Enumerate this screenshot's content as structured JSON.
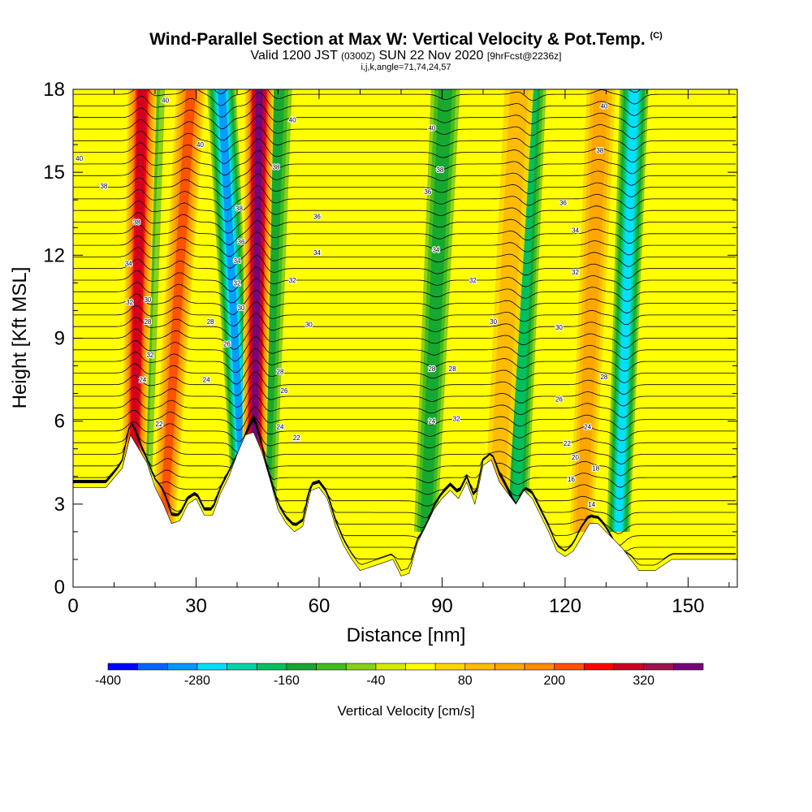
{
  "header": {
    "title": "Wind-Parallel Section at Max W: Vertical Velocity & Pot.Temp.",
    "title_mark": "(C)",
    "valid_prefix": "Valid 1200 JST",
    "valid_utc": "(0300Z)",
    "valid_date": "SUN 22 Nov 2020",
    "forecast": "[9hrFcst@2236z]",
    "grid_info": "i,j,k,angle=71,74,24,57"
  },
  "chart_data": {
    "type": "heatmap",
    "title": "Wind-Parallel Section at Max W: Vertical Velocity & Pot.Temp.",
    "xlabel": "Distance [nm]",
    "ylabel": "Height [Kft MSL]",
    "xlim": [
      0,
      162
    ],
    "ylim": [
      0,
      18
    ],
    "x_ticks": [
      0,
      30,
      60,
      90,
      120,
      150
    ],
    "y_ticks": [
      0,
      3,
      6,
      9,
      12,
      15,
      18
    ],
    "grid": false,
    "colorbar": {
      "label": "Vertical Velocity [cm/s]",
      "levels": [
        -400,
        -360,
        -320,
        -280,
        -240,
        -200,
        -160,
        -120,
        -80,
        -40,
        0,
        40,
        80,
        120,
        160,
        200,
        240,
        280,
        320,
        360,
        400
      ],
      "tick_labels": [
        "-400",
        "-280",
        "-160",
        "-40",
        "80",
        "200",
        "320"
      ],
      "tick_values": [
        -400,
        -280,
        -160,
        -40,
        80,
        200,
        320
      ],
      "colors": [
        "#0000ff",
        "#0066ff",
        "#0099ff",
        "#00e0ff",
        "#00d4a8",
        "#00c060",
        "#14a832",
        "#44bb1c",
        "#88d018",
        "#d4ea00",
        "#ffff00",
        "#ffd700",
        "#ffbb00",
        "#ffa500",
        "#ff8c00",
        "#ff5000",
        "#ff0000",
        "#cc0022",
        "#a0104c",
        "#7a007a"
      ]
    },
    "terrain_kft": [
      [
        0,
        3.6
      ],
      [
        8,
        3.6
      ],
      [
        12,
        4.3
      ],
      [
        14,
        5.5
      ],
      [
        16,
        5.0
      ],
      [
        18,
        4.5
      ],
      [
        20,
        3.6
      ],
      [
        22,
        3.0
      ],
      [
        24,
        2.3
      ],
      [
        26,
        2.4
      ],
      [
        28,
        3.0
      ],
      [
        30,
        3.2
      ],
      [
        32,
        2.6
      ],
      [
        34,
        2.6
      ],
      [
        36,
        3.4
      ],
      [
        38,
        4.0
      ],
      [
        40,
        4.8
      ],
      [
        42,
        5.5
      ],
      [
        44,
        5.6
      ],
      [
        46,
        4.9
      ],
      [
        48,
        3.9
      ],
      [
        50,
        2.8
      ],
      [
        52,
        2.3
      ],
      [
        54,
        2.0
      ],
      [
        56,
        2.2
      ],
      [
        58,
        3.5
      ],
      [
        60,
        3.6
      ],
      [
        62,
        3.2
      ],
      [
        64,
        2.2
      ],
      [
        66,
        1.5
      ],
      [
        68,
        1.0
      ],
      [
        70,
        0.6
      ],
      [
        74,
        0.8
      ],
      [
        78,
        1.0
      ],
      [
        80,
        0.4
      ],
      [
        82,
        0.5
      ],
      [
        84,
        1.6
      ],
      [
        86,
        2.2
      ],
      [
        88,
        2.8
      ],
      [
        90,
        3.2
      ],
      [
        92,
        3.5
      ],
      [
        94,
        3.2
      ],
      [
        96,
        3.8
      ],
      [
        98,
        3.0
      ],
      [
        100,
        4.4
      ],
      [
        102,
        4.6
      ],
      [
        104,
        3.8
      ],
      [
        106,
        3.4
      ],
      [
        108,
        3.0
      ],
      [
        110,
        3.5
      ],
      [
        112,
        3.2
      ],
      [
        114,
        2.6
      ],
      [
        116,
        2.0
      ],
      [
        118,
        1.3
      ],
      [
        120,
        1.1
      ],
      [
        122,
        1.3
      ],
      [
        124,
        1.8
      ],
      [
        126,
        2.3
      ],
      [
        128,
        2.3
      ],
      [
        130,
        2.0
      ],
      [
        132,
        1.7
      ],
      [
        134,
        1.4
      ],
      [
        136,
        1.0
      ],
      [
        138,
        0.6
      ],
      [
        142,
        0.6
      ],
      [
        146,
        1.0
      ],
      [
        150,
        1.0
      ],
      [
        154,
        1.0
      ],
      [
        158,
        1.0
      ],
      [
        162,
        1.0
      ]
    ],
    "updraft_bands": [
      {
        "x_top": 17.0,
        "x_bottom": 14.5,
        "w_cm_s": 300
      },
      {
        "x_top": 29.0,
        "x_bottom": 22.0,
        "w_cm_s": 200
      },
      {
        "x_top": 45.5,
        "x_bottom": 44.0,
        "w_cm_s": 360
      },
      {
        "x_top": 109.0,
        "x_bottom": 103.0,
        "w_cm_s": 80
      },
      {
        "x_top": 129.0,
        "x_bottom": 124.0,
        "w_cm_s": 120
      }
    ],
    "downdraft_bands": [
      {
        "x_top": 19.0,
        "x_bottom": 16.0,
        "w_cm_s": -100
      },
      {
        "x_top": 36.0,
        "x_bottom": 42.0,
        "w_cm_s": -300
      },
      {
        "x_top": 50.0,
        "x_bottom": 46.5,
        "w_cm_s": -120
      },
      {
        "x_top": 91.0,
        "x_bottom": 86.0,
        "w_cm_s": -140
      },
      {
        "x_top": 112.0,
        "x_bottom": 108.0,
        "w_cm_s": -180
      },
      {
        "x_top": 137.0,
        "x_bottom": 133.0,
        "w_cm_s": -260
      }
    ],
    "theta_contour_labels": [
      {
        "text": "40",
        "x": 1.5,
        "y": 15.5
      },
      {
        "text": "38",
        "x": 7.5,
        "y": 14.5
      },
      {
        "text": "38",
        "x": 15.5,
        "y": 13.2
      },
      {
        "text": "34",
        "x": 13.5,
        "y": 11.7
      },
      {
        "text": "32",
        "x": 13.8,
        "y": 10.3
      },
      {
        "text": "30",
        "x": 18.2,
        "y": 10.4
      },
      {
        "text": "28",
        "x": 18.2,
        "y": 9.6
      },
      {
        "text": "32",
        "x": 18.8,
        "y": 8.4
      },
      {
        "text": "24",
        "x": 17.0,
        "y": 7.5
      },
      {
        "text": "22",
        "x": 21.0,
        "y": 5.9
      },
      {
        "text": "40",
        "x": 22.5,
        "y": 17.6
      },
      {
        "text": "40",
        "x": 31.0,
        "y": 16.0
      },
      {
        "text": "28",
        "x": 33.5,
        "y": 9.6
      },
      {
        "text": "24",
        "x": 32.5,
        "y": 7.5
      },
      {
        "text": "26",
        "x": 37.5,
        "y": 8.8
      },
      {
        "text": "38",
        "x": 40.5,
        "y": 13.7
      },
      {
        "text": "36",
        "x": 41.0,
        "y": 12.5
      },
      {
        "text": "34",
        "x": 40.0,
        "y": 11.8
      },
      {
        "text": "32",
        "x": 40.0,
        "y": 11.0
      },
      {
        "text": "30",
        "x": 41.0,
        "y": 10.1
      },
      {
        "text": "38",
        "x": 49.5,
        "y": 15.2
      },
      {
        "text": "40",
        "x": 53.5,
        "y": 16.9
      },
      {
        "text": "36",
        "x": 59.5,
        "y": 13.4
      },
      {
        "text": "34",
        "x": 59.5,
        "y": 12.1
      },
      {
        "text": "32",
        "x": 53.5,
        "y": 11.1
      },
      {
        "text": "30",
        "x": 57.5,
        "y": 9.5
      },
      {
        "text": "28",
        "x": 50.5,
        "y": 7.8
      },
      {
        "text": "26",
        "x": 51.5,
        "y": 7.1
      },
      {
        "text": "24",
        "x": 50.5,
        "y": 5.8
      },
      {
        "text": "22",
        "x": 54.5,
        "y": 5.4
      },
      {
        "text": "40",
        "x": 87.5,
        "y": 16.6
      },
      {
        "text": "38",
        "x": 89.5,
        "y": 15.1
      },
      {
        "text": "36",
        "x": 86.5,
        "y": 14.3
      },
      {
        "text": "34",
        "x": 88.5,
        "y": 12.2
      },
      {
        "text": "32",
        "x": 97.5,
        "y": 11.1
      },
      {
        "text": "30",
        "x": 102.5,
        "y": 9.6
      },
      {
        "text": "28",
        "x": 87.5,
        "y": 7.9
      },
      {
        "text": "28",
        "x": 92.5,
        "y": 7.9
      },
      {
        "text": "24",
        "x": 87.5,
        "y": 6.0
      },
      {
        "text": "32",
        "x": 93.5,
        "y": 6.1
      },
      {
        "text": "40",
        "x": 129.5,
        "y": 17.4
      },
      {
        "text": "38",
        "x": 128.5,
        "y": 15.8
      },
      {
        "text": "36",
        "x": 119.5,
        "y": 13.9
      },
      {
        "text": "34",
        "x": 122.5,
        "y": 12.9
      },
      {
        "text": "32",
        "x": 122.5,
        "y": 11.4
      },
      {
        "text": "30",
        "x": 118.5,
        "y": 9.4
      },
      {
        "text": "28",
        "x": 129.5,
        "y": 7.6
      },
      {
        "text": "26",
        "x": 118.5,
        "y": 6.8
      },
      {
        "text": "24",
        "x": 125.5,
        "y": 5.8
      },
      {
        "text": "22",
        "x": 120.5,
        "y": 5.2
      },
      {
        "text": "20",
        "x": 122.5,
        "y": 4.7
      },
      {
        "text": "18",
        "x": 127.5,
        "y": 4.3
      },
      {
        "text": "16",
        "x": 121.5,
        "y": 3.9
      },
      {
        "text": "14",
        "x": 126.5,
        "y": 3.0
      }
    ]
  }
}
